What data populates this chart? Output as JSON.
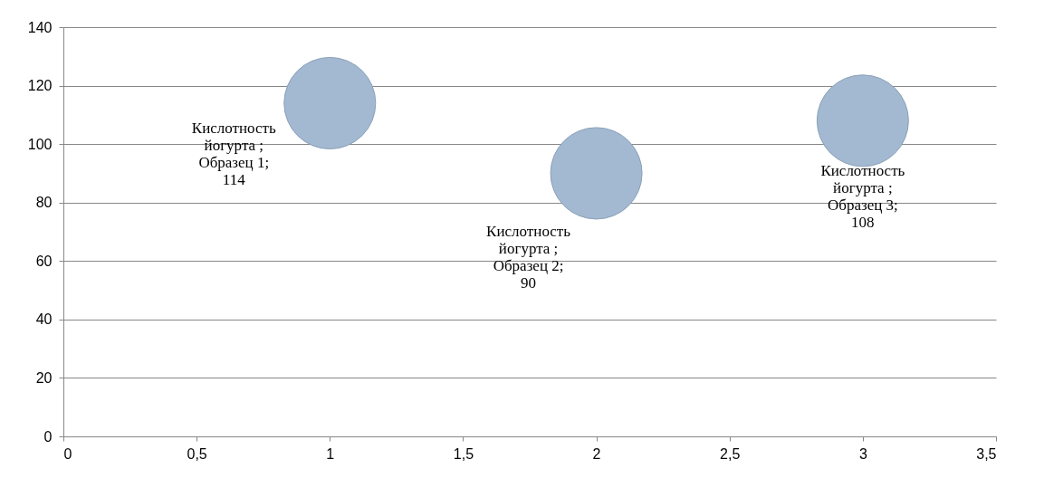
{
  "chart_data": {
    "type": "bubble",
    "x": [
      1,
      2,
      3
    ],
    "series": [
      {
        "color": "#a3b9d1",
        "values": [
          114,
          90,
          108
        ],
        "sizes": [
          1,
          1,
          1
        ],
        "value_labels": [
          "Кислотность йогурта ; Образец 1; 114",
          "Кислотность йогурта ; Образец 2; 90",
          "Кислотность йогурта ; Образец 3; 108"
        ]
      }
    ],
    "xlim": [
      0,
      3.5
    ],
    "xticks": [
      0,
      {
        "value": 0.5,
        "label": "0,5"
      },
      1,
      {
        "value": 1.5,
        "label": "1,5"
      },
      2,
      {
        "value": 2.5,
        "label": "2,5"
      },
      3,
      {
        "value": 3.5,
        "label": "3,5"
      }
    ],
    "ylim": [
      0,
      140
    ],
    "yticks": [
      0,
      20,
      40,
      60,
      80,
      100,
      120,
      140
    ],
    "grid": "y",
    "legend": false
  }
}
